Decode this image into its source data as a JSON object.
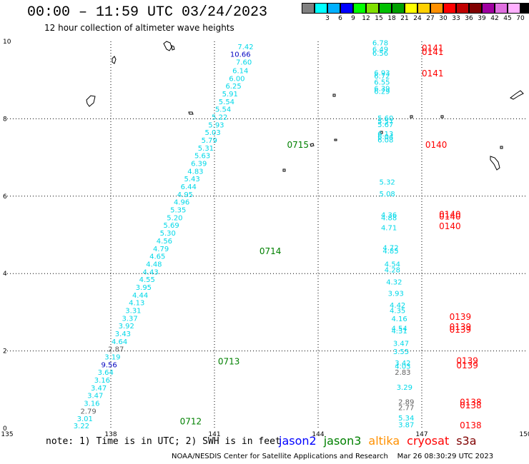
{
  "title": "00:00 – 11:59 UTC 03/24/2023",
  "subtitle": "12 hour collection of altimeter wave heights",
  "scale": {
    "unit_label": "(ft)",
    "bins": [
      {
        "label": "",
        "color": "#808080"
      },
      {
        "label": "3",
        "color": "#00ffff"
      },
      {
        "label": "6",
        "color": "#00b0ff"
      },
      {
        "label": "9",
        "color": "#0000ff"
      },
      {
        "label": "12",
        "color": "#00ff00"
      },
      {
        "label": "15",
        "color": "#80e000"
      },
      {
        "label": "18",
        "color": "#00c000"
      },
      {
        "label": "21",
        "color": "#00a000"
      },
      {
        "label": "24",
        "color": "#ffff00"
      },
      {
        "label": "27",
        "color": "#ffd000"
      },
      {
        "label": "30",
        "color": "#ff9000"
      },
      {
        "label": "33",
        "color": "#ff0000"
      },
      {
        "label": "36",
        "color": "#c00000"
      },
      {
        "label": "39",
        "color": "#800000"
      },
      {
        "label": "42",
        "color": "#a000a0"
      },
      {
        "label": "45",
        "color": "#e070e0"
      },
      {
        "label": "70",
        "color": "#ffb0ff"
      },
      {
        "label": "",
        "color": "#000000"
      }
    ]
  },
  "axes": {
    "lon_ticks": [
      "135",
      "138",
      "141",
      "144",
      "147",
      "150"
    ],
    "lat_ticks": [
      "0",
      "2",
      "4",
      "6",
      "8",
      "10"
    ],
    "lon_range": [
      135,
      150
    ],
    "lat_range": [
      0,
      10
    ]
  },
  "passes": [
    {
      "label": "0712",
      "lon": 140.0,
      "lat": 0.1,
      "color": "#008000"
    },
    {
      "label": "0713",
      "lon": 141.1,
      "lat": 1.65,
      "color": "#008000"
    },
    {
      "label": "0714",
      "lon": 142.3,
      "lat": 4.5,
      "color": "#008000"
    },
    {
      "label": "0715",
      "lon": 143.1,
      "lat": 7.25,
      "color": "#008000"
    },
    {
      "label": "0141",
      "lon": 147.0,
      "lat": 9.75,
      "color": "#ff0000"
    },
    {
      "label": "0141",
      "lon": 147.0,
      "lat": 9.65,
      "color": "#ff0000"
    },
    {
      "label": "0141",
      "lon": 147.0,
      "lat": 9.1,
      "color": "#ff0000"
    },
    {
      "label": "0140",
      "lon": 147.1,
      "lat": 7.25,
      "color": "#ff0000"
    },
    {
      "label": "0140",
      "lon": 147.5,
      "lat": 5.45,
      "color": "#ff0000"
    },
    {
      "label": "0140",
      "lon": 147.5,
      "lat": 5.4,
      "color": "#ff0000"
    },
    {
      "label": "0140",
      "lon": 147.5,
      "lat": 5.15,
      "color": "#ff0000"
    },
    {
      "label": "0139",
      "lon": 147.8,
      "lat": 2.8,
      "color": "#ff0000"
    },
    {
      "label": "0139",
      "lon": 147.8,
      "lat": 2.55,
      "color": "#ff0000"
    },
    {
      "label": "0139",
      "lon": 147.8,
      "lat": 2.47,
      "color": "#ff0000"
    },
    {
      "label": "0139",
      "lon": 148.0,
      "lat": 1.67,
      "color": "#ff0000"
    },
    {
      "label": "0139",
      "lon": 148.0,
      "lat": 1.55,
      "color": "#ff0000"
    },
    {
      "label": "0138",
      "lon": 148.1,
      "lat": 0.6,
      "color": "#ff0000"
    },
    {
      "label": "0138",
      "lon": 148.1,
      "lat": 0.52,
      "color": "#ff0000"
    },
    {
      "label": "0138",
      "lon": 148.1,
      "lat": 0.0,
      "color": "#ff0000"
    }
  ],
  "observations": [
    {
      "v": "7.42",
      "lon": 141.9,
      "lat": 9.8,
      "c": "#00d8e8"
    },
    {
      "v": "10.66",
      "lon": 141.75,
      "lat": 9.6,
      "c": "#0000c0"
    },
    {
      "v": "7.60",
      "lon": 141.85,
      "lat": 9.4,
      "c": "#00d8e8"
    },
    {
      "v": "6.14",
      "lon": 141.75,
      "lat": 9.18,
      "c": "#00d8e8"
    },
    {
      "v": "6.00",
      "lon": 141.65,
      "lat": 8.98,
      "c": "#00d8e8"
    },
    {
      "v": "6.25",
      "lon": 141.55,
      "lat": 8.78,
      "c": "#00d8e8"
    },
    {
      "v": "5.91",
      "lon": 141.45,
      "lat": 8.58,
      "c": "#00d8e8"
    },
    {
      "v": "5.54",
      "lon": 141.35,
      "lat": 8.38,
      "c": "#00d8e8"
    },
    {
      "v": "5.54",
      "lon": 141.25,
      "lat": 8.18,
      "c": "#00d8e8"
    },
    {
      "v": "5.22",
      "lon": 141.15,
      "lat": 7.98,
      "c": "#00d8e8"
    },
    {
      "v": "5.93",
      "lon": 141.05,
      "lat": 7.78,
      "c": "#00d8e8"
    },
    {
      "v": "5.03",
      "lon": 140.95,
      "lat": 7.58,
      "c": "#00d8e8"
    },
    {
      "v": "5.79",
      "lon": 140.85,
      "lat": 7.38,
      "c": "#00d8e8"
    },
    {
      "v": "5.31",
      "lon": 140.75,
      "lat": 7.18,
      "c": "#00d8e8"
    },
    {
      "v": "5.63",
      "lon": 140.65,
      "lat": 6.98,
      "c": "#00d8e8"
    },
    {
      "v": "6.39",
      "lon": 140.55,
      "lat": 6.78,
      "c": "#00d8e8"
    },
    {
      "v": "4.83",
      "lon": 140.45,
      "lat": 6.58,
      "c": "#00d8e8"
    },
    {
      "v": "5.43",
      "lon": 140.35,
      "lat": 6.38,
      "c": "#00d8e8"
    },
    {
      "v": "6.44",
      "lon": 140.25,
      "lat": 6.18,
      "c": "#00d8e8"
    },
    {
      "v": "4.95",
      "lon": 140.15,
      "lat": 5.98,
      "c": "#00d8e8"
    },
    {
      "v": "4.96",
      "lon": 140.05,
      "lat": 5.78,
      "c": "#00d8e8"
    },
    {
      "v": "5.35",
      "lon": 139.95,
      "lat": 5.58,
      "c": "#00d8e8"
    },
    {
      "v": "5.20",
      "lon": 139.85,
      "lat": 5.38,
      "c": "#00d8e8"
    },
    {
      "v": "5.69",
      "lon": 139.75,
      "lat": 5.18,
      "c": "#00d8e8"
    },
    {
      "v": "5.30",
      "lon": 139.65,
      "lat": 4.98,
      "c": "#00d8e8"
    },
    {
      "v": "4.56",
      "lon": 139.55,
      "lat": 4.78,
      "c": "#00d8e8"
    },
    {
      "v": "4.79",
      "lon": 139.45,
      "lat": 4.58,
      "c": "#00d8e8"
    },
    {
      "v": "4.65",
      "lon": 139.35,
      "lat": 4.38,
      "c": "#00d8e8"
    },
    {
      "v": "4.48",
      "lon": 139.25,
      "lat": 4.18,
      "c": "#00d8e8"
    },
    {
      "v": "4.43",
      "lon": 139.15,
      "lat": 3.98,
      "c": "#00d8e8"
    },
    {
      "v": "4.55",
      "lon": 139.05,
      "lat": 3.78,
      "c": "#00d8e8"
    },
    {
      "v": "3.95",
      "lon": 138.95,
      "lat": 3.58,
      "c": "#00d8e8"
    },
    {
      "v": "4.44",
      "lon": 138.85,
      "lat": 3.38,
      "c": "#00d8e8"
    },
    {
      "v": "4.13",
      "lon": 138.75,
      "lat": 3.18,
      "c": "#00d8e8"
    },
    {
      "v": "3.31",
      "lon": 138.65,
      "lat": 2.98,
      "c": "#00d8e8"
    },
    {
      "v": "3.37",
      "lon": 138.55,
      "lat": 2.78,
      "c": "#00d8e8"
    },
    {
      "v": "3.92",
      "lon": 138.45,
      "lat": 2.58,
      "c": "#00d8e8"
    },
    {
      "v": "3.43",
      "lon": 138.35,
      "lat": 2.38,
      "c": "#00d8e8"
    },
    {
      "v": "4.64",
      "lon": 138.25,
      "lat": 2.18,
      "c": "#00d8e8"
    },
    {
      "v": "2.87",
      "lon": 138.15,
      "lat": 1.98,
      "c": "#606060"
    },
    {
      "v": "3.19",
      "lon": 138.05,
      "lat": 1.78,
      "c": "#00d8e8"
    },
    {
      "v": "9.56",
      "lon": 137.95,
      "lat": 1.58,
      "c": "#0000c0"
    },
    {
      "v": "3.64",
      "lon": 137.85,
      "lat": 1.38,
      "c": "#00d8e8"
    },
    {
      "v": "3.16",
      "lon": 137.75,
      "lat": 1.18,
      "c": "#00d8e8"
    },
    {
      "v": "3.47",
      "lon": 137.65,
      "lat": 0.98,
      "c": "#00d8e8"
    },
    {
      "v": "3.47",
      "lon": 137.55,
      "lat": 0.78,
      "c": "#00d8e8"
    },
    {
      "v": "3.16",
      "lon": 137.45,
      "lat": 0.58,
      "c": "#00d8e8"
    },
    {
      "v": "2.79",
      "lon": 137.35,
      "lat": 0.38,
      "c": "#606060"
    },
    {
      "v": "3.01",
      "lon": 137.25,
      "lat": 0.18,
      "c": "#00d8e8"
    },
    {
      "v": "3.22",
      "lon": 137.15,
      "lat": 0.0,
      "c": "#00d8e8"
    },
    {
      "v": "6.78",
      "lon": 145.8,
      "lat": 9.9,
      "c": "#00d8e8"
    },
    {
      "v": "6.49",
      "lon": 145.8,
      "lat": 9.73,
      "c": "#00d8e8"
    },
    {
      "v": "6.56",
      "lon": 145.8,
      "lat": 9.63,
      "c": "#00d8e8"
    },
    {
      "v": "6.93",
      "lon": 145.85,
      "lat": 9.12,
      "c": "#00d8e8"
    },
    {
      "v": "6.72",
      "lon": 145.85,
      "lat": 9.04,
      "c": "#00d8e8"
    },
    {
      "v": "6.55",
      "lon": 145.85,
      "lat": 8.88,
      "c": "#00d8e8"
    },
    {
      "v": "6.39",
      "lon": 145.85,
      "lat": 8.72,
      "c": "#00d8e8"
    },
    {
      "v": "6.29",
      "lon": 145.85,
      "lat": 8.64,
      "c": "#00d8e8"
    },
    {
      "v": "5.60",
      "lon": 145.95,
      "lat": 7.95,
      "c": "#00d8e8"
    },
    {
      "v": "5.57",
      "lon": 145.95,
      "lat": 7.87,
      "c": "#00d8e8"
    },
    {
      "v": "5.67",
      "lon": 145.95,
      "lat": 7.79,
      "c": "#00d8e8"
    },
    {
      "v": "6.13",
      "lon": 145.95,
      "lat": 7.55,
      "c": "#00d8e8"
    },
    {
      "v": "6.04",
      "lon": 145.95,
      "lat": 7.47,
      "c": "#00d8e8"
    },
    {
      "v": "6.08",
      "lon": 145.95,
      "lat": 7.39,
      "c": "#00d8e8"
    },
    {
      "v": "5.32",
      "lon": 146.0,
      "lat": 6.3,
      "c": "#00d8e8"
    },
    {
      "v": "5.08",
      "lon": 146.0,
      "lat": 6.0,
      "c": "#00d8e8"
    },
    {
      "v": "4.36",
      "lon": 146.05,
      "lat": 5.45,
      "c": "#00d8e8"
    },
    {
      "v": "4.88",
      "lon": 146.05,
      "lat": 5.38,
      "c": "#00d8e8"
    },
    {
      "v": "4.71",
      "lon": 146.05,
      "lat": 5.12,
      "c": "#00d8e8"
    },
    {
      "v": "4.72",
      "lon": 146.1,
      "lat": 4.6,
      "c": "#00d8e8"
    },
    {
      "v": "4.85",
      "lon": 146.1,
      "lat": 4.52,
      "c": "#00d8e8"
    },
    {
      "v": "4.54",
      "lon": 146.15,
      "lat": 4.18,
      "c": "#00d8e8"
    },
    {
      "v": "4.28",
      "lon": 146.15,
      "lat": 4.03,
      "c": "#00d8e8"
    },
    {
      "v": "4.32",
      "lon": 146.2,
      "lat": 3.72,
      "c": "#00d8e8"
    },
    {
      "v": "3.93",
      "lon": 146.25,
      "lat": 3.42,
      "c": "#00d8e8"
    },
    {
      "v": "4.42",
      "lon": 146.3,
      "lat": 3.12,
      "c": "#00d8e8"
    },
    {
      "v": "4.35",
      "lon": 146.3,
      "lat": 2.98,
      "c": "#00d8e8"
    },
    {
      "v": "4.16",
      "lon": 146.35,
      "lat": 2.77,
      "c": "#00d8e8"
    },
    {
      "v": "4.54",
      "lon": 146.35,
      "lat": 2.52,
      "c": "#00d8e8"
    },
    {
      "v": "4.31",
      "lon": 146.35,
      "lat": 2.45,
      "c": "#00d8e8"
    },
    {
      "v": "3.47",
      "lon": 146.4,
      "lat": 2.13,
      "c": "#00d8e8"
    },
    {
      "v": "3.55",
      "lon": 146.4,
      "lat": 1.92,
      "c": "#00d8e8"
    },
    {
      "v": "3.42",
      "lon": 146.45,
      "lat": 1.62,
      "c": "#00d8e8"
    },
    {
      "v": "4.03",
      "lon": 146.45,
      "lat": 1.54,
      "c": "#00d8e8"
    },
    {
      "v": "2.83",
      "lon": 146.45,
      "lat": 1.38,
      "c": "#606060"
    },
    {
      "v": "3.29",
      "lon": 146.5,
      "lat": 1.0,
      "c": "#00d8e8"
    },
    {
      "v": "2.89",
      "lon": 146.55,
      "lat": 0.62,
      "c": "#606060"
    },
    {
      "v": "2.77",
      "lon": 146.55,
      "lat": 0.47,
      "c": "#606060"
    },
    {
      "v": "5.34",
      "lon": 146.55,
      "lat": 0.2,
      "c": "#00d8e8"
    },
    {
      "v": "3.87",
      "lon": 146.55,
      "lat": 0.03,
      "c": "#00d8e8"
    }
  ],
  "note": "note: 1) Time is in UTC; 2) SWH is in feet",
  "missions": [
    {
      "name": "jason2",
      "color": "#0000ff"
    },
    {
      "name": "jason3",
      "color": "#008000"
    },
    {
      "name": "altika",
      "color": "#ff9000"
    },
    {
      "name": "cryosat",
      "color": "#ff0000"
    },
    {
      "name": "s3a",
      "color": "#800000"
    }
  ],
  "credit": "NOAA/NESDIS Center for Satellite Applications and Research",
  "timestamp": "Mar 26 08:30:29 UTC 2023"
}
